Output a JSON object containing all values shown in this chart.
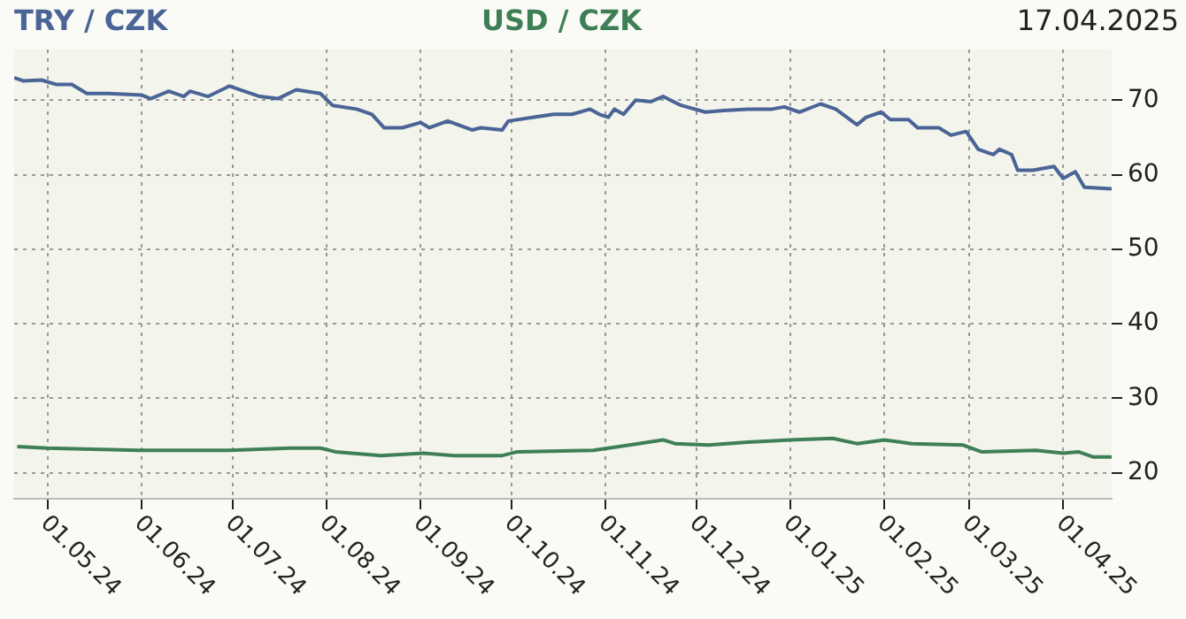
{
  "chart_data": {
    "type": "line",
    "title": "17.04.2025",
    "series": [
      {
        "name": "TRY / CZK",
        "color": "#4a6496",
        "x": [
          "2024-04-20",
          "2024-04-23",
          "2024-04-29",
          "2024-05-04",
          "2024-05-09",
          "2024-05-14",
          "2024-05-21",
          "2024-06-01",
          "2024-06-04",
          "2024-06-10",
          "2024-06-15",
          "2024-06-17",
          "2024-06-23",
          "2024-06-30",
          "2024-07-10",
          "2024-07-16",
          "2024-07-22",
          "2024-07-30",
          "2024-08-03",
          "2024-08-11",
          "2024-08-16",
          "2024-08-20",
          "2024-08-26",
          "2024-09-01",
          "2024-09-04",
          "2024-09-10",
          "2024-09-18",
          "2024-09-21",
          "2024-09-28",
          "2024-09-30",
          "2024-10-08",
          "2024-10-15",
          "2024-10-21",
          "2024-10-27",
          "2024-10-30",
          "2024-11-02",
          "2024-11-04",
          "2024-11-07",
          "2024-11-11",
          "2024-11-16",
          "2024-11-20",
          "2024-11-26",
          "2024-12-04",
          "2024-12-10",
          "2024-12-18",
          "2024-12-26",
          "2024-12-30",
          "2025-01-04",
          "2025-01-11",
          "2025-01-16",
          "2025-01-23",
          "2025-01-26",
          "2025-01-31",
          "2025-02-03",
          "2025-02-09",
          "2025-02-12",
          "2025-02-19",
          "2025-02-23",
          "2025-02-28",
          "2025-03-04",
          "2025-03-09",
          "2025-03-11",
          "2025-03-15",
          "2025-03-17",
          "2025-03-22",
          "2025-03-29",
          "2025-04-01",
          "2025-04-05",
          "2025-04-08",
          "2025-04-17"
        ],
        "values": [
          73.0,
          72.6,
          72.7,
          72.1,
          72.1,
          70.9,
          70.9,
          70.7,
          70.2,
          71.2,
          70.5,
          71.2,
          70.5,
          71.9,
          70.5,
          70.2,
          71.4,
          70.9,
          69.3,
          68.8,
          68.1,
          66.3,
          66.3,
          67.0,
          66.3,
          67.2,
          66.0,
          66.3,
          66.0,
          67.2,
          67.7,
          68.1,
          68.1,
          68.8,
          68.1,
          67.7,
          68.8,
          68.1,
          70.0,
          69.8,
          70.5,
          69.3,
          68.4,
          68.6,
          68.8,
          68.8,
          69.1,
          68.4,
          69.5,
          68.8,
          66.7,
          67.7,
          68.4,
          67.4,
          67.4,
          66.3,
          66.3,
          65.3,
          65.8,
          63.4,
          62.7,
          63.4,
          62.7,
          60.6,
          60.6,
          61.1,
          59.5,
          60.4,
          58.3,
          58.1
        ]
      },
      {
        "name": "USD / CZK",
        "color": "#3f7f55",
        "x": [
          "2024-04-21",
          "2024-05-01",
          "2024-05-31",
          "2024-06-30",
          "2024-07-20",
          "2024-07-30",
          "2024-08-04",
          "2024-08-19",
          "2024-09-02",
          "2024-09-12",
          "2024-09-28",
          "2024-10-03",
          "2024-10-28",
          "2024-11-09",
          "2024-11-20",
          "2024-11-24",
          "2024-12-05",
          "2024-12-18",
          "2025-01-01",
          "2025-01-15",
          "2025-01-23",
          "2025-02-01",
          "2025-02-10",
          "2025-02-27",
          "2025-03-05",
          "2025-03-23",
          "2025-04-01",
          "2025-04-06",
          "2025-04-11",
          "2025-04-17"
        ],
        "values": [
          23.5,
          23.3,
          23.0,
          23.0,
          23.3,
          23.3,
          22.8,
          22.3,
          22.6,
          22.3,
          22.3,
          22.8,
          23.0,
          23.7,
          24.4,
          23.9,
          23.7,
          24.1,
          24.4,
          24.6,
          23.9,
          24.4,
          23.9,
          23.7,
          22.8,
          23.0,
          22.6,
          22.8,
          22.1,
          22.1
        ]
      }
    ],
    "xlim": [
      "2024-04-20",
      "2025-04-17"
    ],
    "xticks": [
      {
        "value": "2024-05-01",
        "label": "01.05.24"
      },
      {
        "value": "2024-06-01",
        "label": "01.06.24"
      },
      {
        "value": "2024-07-01",
        "label": "01.07.24"
      },
      {
        "value": "2024-08-01",
        "label": "01.08.24"
      },
      {
        "value": "2024-09-01",
        "label": "01.09.24"
      },
      {
        "value": "2024-10-01",
        "label": "01.10.24"
      },
      {
        "value": "2024-11-01",
        "label": "01.11.24"
      },
      {
        "value": "2024-12-01",
        "label": "01.12.24"
      },
      {
        "value": "2025-01-01",
        "label": "01.01.25"
      },
      {
        "value": "2025-02-01",
        "label": "01.02.25"
      },
      {
        "value": "2025-03-01",
        "label": "01.03.25"
      },
      {
        "value": "2025-04-01",
        "label": "01.04.25"
      }
    ],
    "ylim": [
      16.5,
      76.8
    ],
    "yticks": [
      20,
      30,
      40,
      50,
      60,
      70
    ],
    "grid": true,
    "legend": "top",
    "marker": "none",
    "line_style": "solid"
  }
}
